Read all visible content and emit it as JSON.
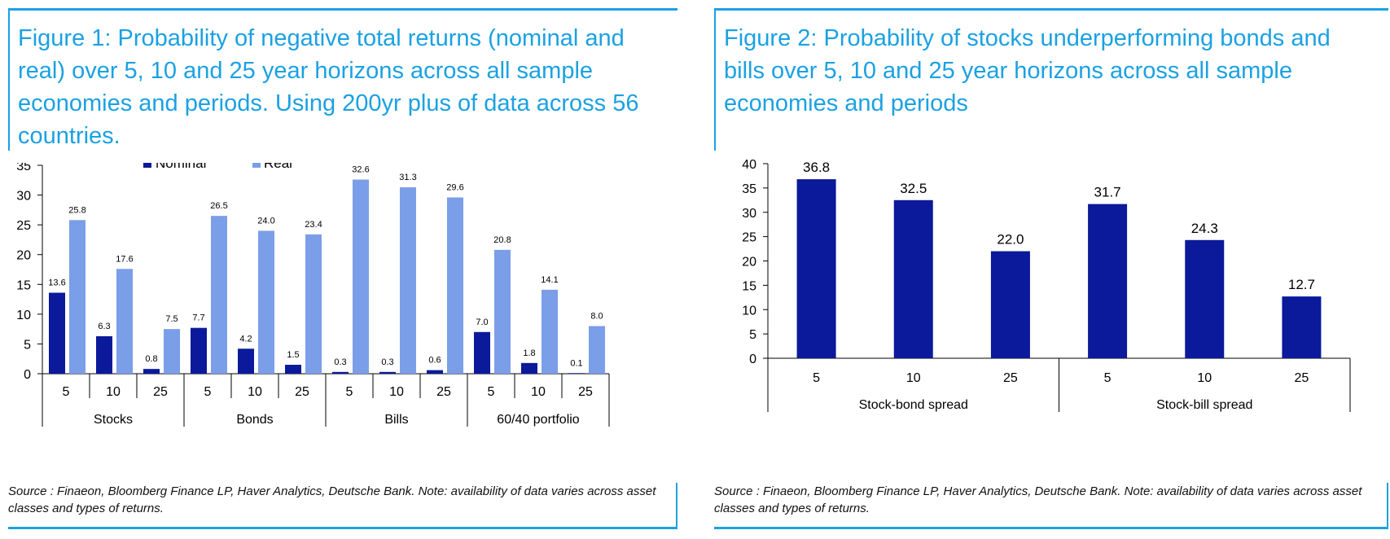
{
  "figure1": {
    "title": "Figure 1: Probability of negative total returns (nominal and real) over 5, 10 and 25 year horizons across all sample economies and periods. Using 200yr plus of data across 56 countries.",
    "source": "Source : Finaeon, Bloomberg Finance LP, Haver Analytics, Deutsche Bank. Note: availability of data varies across asset classes and types of returns."
  },
  "figure2": {
    "title": "Figure 2: Probability of stocks underperforming bonds and bills over 5, 10 and 25 year horizons across all sample economies and periods",
    "source": "Source : Finaeon, Bloomberg Finance LP, Haver Analytics, Deutsche Bank. Note: availability of data varies across asset classes and types of returns."
  },
  "chart_data": [
    {
      "type": "bar",
      "title": "Figure 1: Probability of negative total returns (nominal and real) over 5, 10 and 25 year horizons across all sample economies and periods. Using 200yr plus of data across 56 countries.",
      "groups": [
        "Stocks",
        "Bonds",
        "Bills",
        "60/40 portfolio"
      ],
      "categories": [
        "5",
        "10",
        "25",
        "5",
        "10",
        "25",
        "5",
        "10",
        "25",
        "5",
        "10",
        "25"
      ],
      "series": [
        {
          "name": "Nominal",
          "color": "#0a1a9a",
          "values": [
            13.6,
            6.3,
            0.8,
            7.7,
            4.2,
            1.5,
            0.3,
            0.3,
            0.6,
            7.0,
            1.8,
            0.1
          ]
        },
        {
          "name": "Real",
          "color": "#7b9ee8",
          "values": [
            25.8,
            17.6,
            7.5,
            26.5,
            24.0,
            23.4,
            32.6,
            31.3,
            29.6,
            20.8,
            14.1,
            8.0
          ]
        }
      ],
      "labels": {
        "Nominal": [
          "13.6",
          "6.3",
          "0.8",
          "7.7",
          "4.2",
          "1.5",
          "0.3",
          "0.3",
          "0.6",
          "7.0",
          "1.8",
          "0.1"
        ],
        "Real": [
          "25.8",
          "17.6",
          "7.5",
          "26.5",
          "24.0",
          "23.4",
          "32.6",
          "31.3",
          "29.6",
          "20.8",
          "14.1",
          "8.0"
        ]
      },
      "ylim": [
        0,
        35
      ],
      "yticks": [
        "0",
        "5",
        "10",
        "15",
        "20",
        "25",
        "30",
        "35"
      ],
      "legend": "top"
    },
    {
      "type": "bar",
      "title": "Figure 2: Probability of stocks underperforming bonds and bills over 5, 10 and 25 year horizons across all sample economies and periods",
      "groups": [
        "Stock-bond spread",
        "Stock-bill spread"
      ],
      "categories": [
        "5",
        "10",
        "25",
        "5",
        "10",
        "25"
      ],
      "series": [
        {
          "name": "",
          "color": "#0a1a9a",
          "values": [
            36.8,
            32.5,
            22.0,
            31.7,
            24.3,
            12.7
          ]
        }
      ],
      "labels": [
        "36.8",
        "32.5",
        "22.0",
        "31.7",
        "24.3",
        "12.7"
      ],
      "ylim": [
        0,
        40
      ],
      "yticks": [
        "0",
        "5",
        "10",
        "15",
        "20",
        "25",
        "30",
        "35",
        "40"
      ]
    }
  ]
}
